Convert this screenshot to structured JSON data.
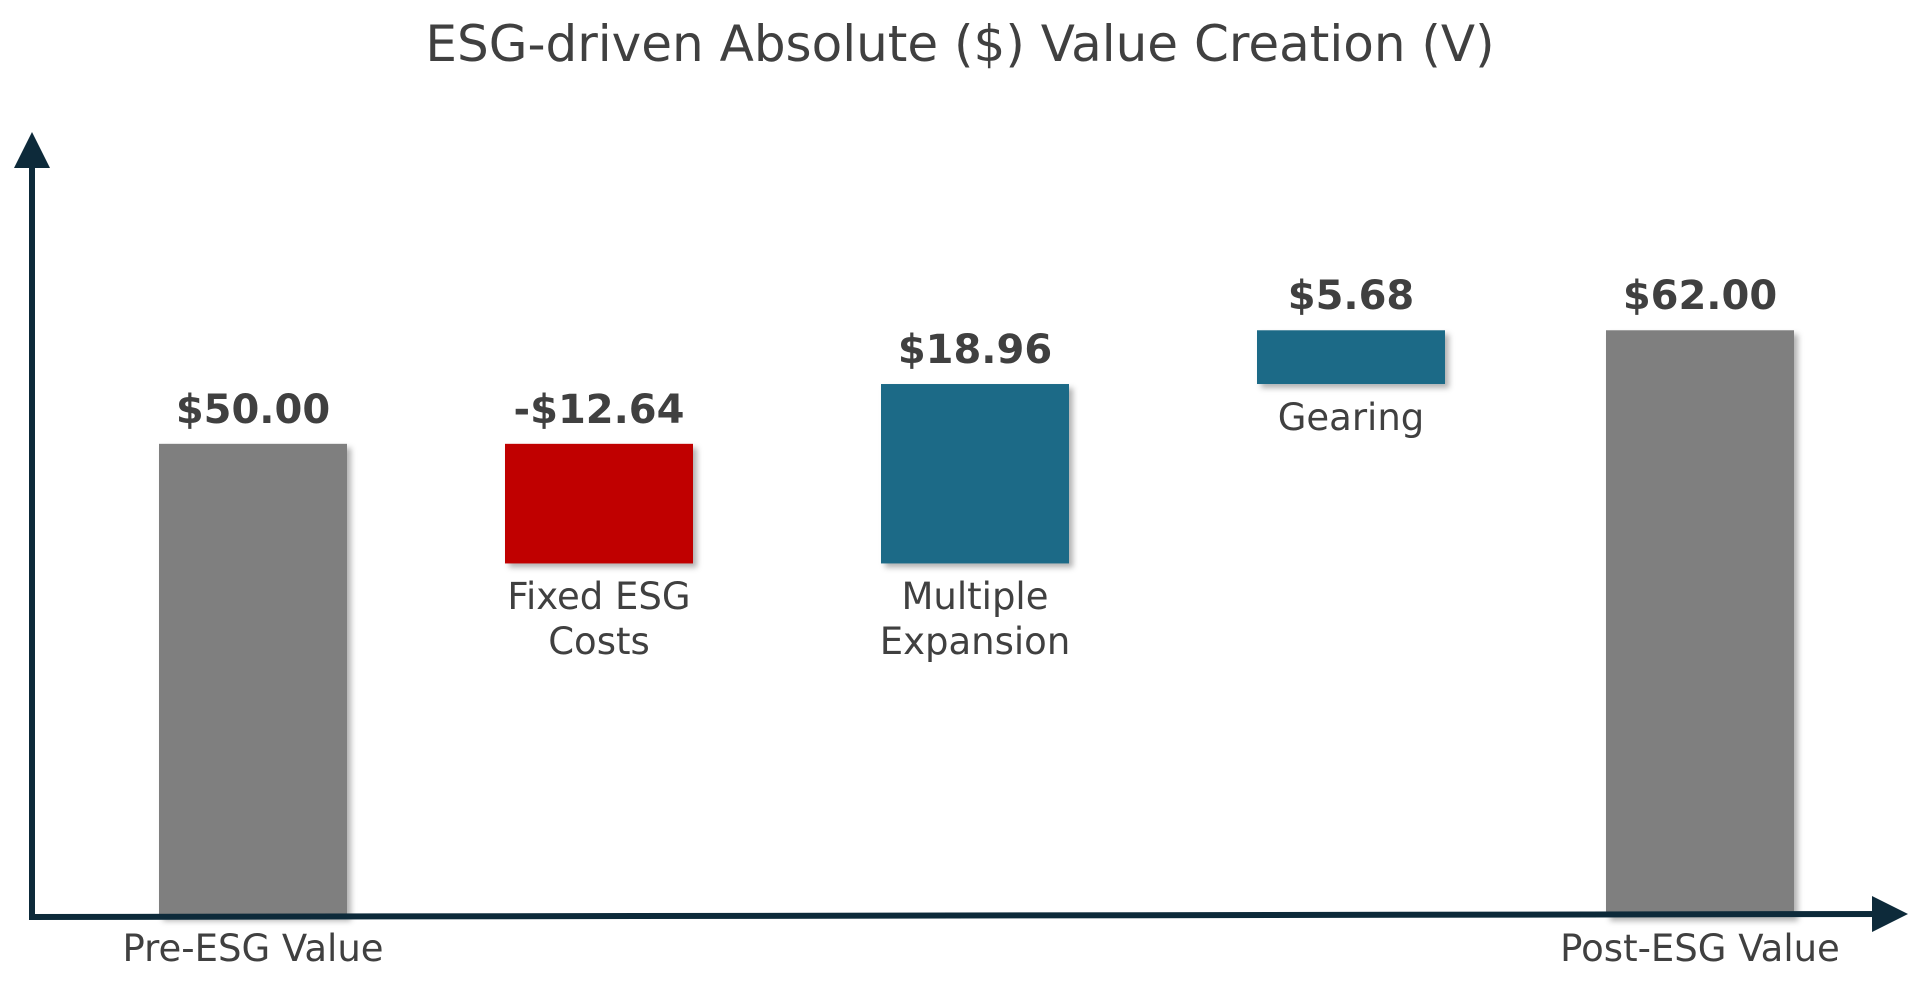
{
  "chart_data": {
    "type": "waterfall",
    "title": "ESG-driven Absolute ($) Value Creation (V)",
    "categories": [
      "Pre-ESG Value",
      "Fixed ESG Costs",
      "Multiple Expansion",
      "Gearing",
      "Post-ESG Value"
    ],
    "values": [
      50,
      -12.64,
      18.96,
      5.68,
      62
    ],
    "value_labels": [
      "$50.00",
      "-$12.64",
      "$18.96",
      "$5.68",
      "$62.00"
    ],
    "totals": [
      true,
      false,
      false,
      false,
      true
    ],
    "colors": {
      "total": "#7f7f7f",
      "decrease": "#c00000",
      "increase": "#1f6b87"
    },
    "ylim": [
      0,
      82
    ]
  }
}
